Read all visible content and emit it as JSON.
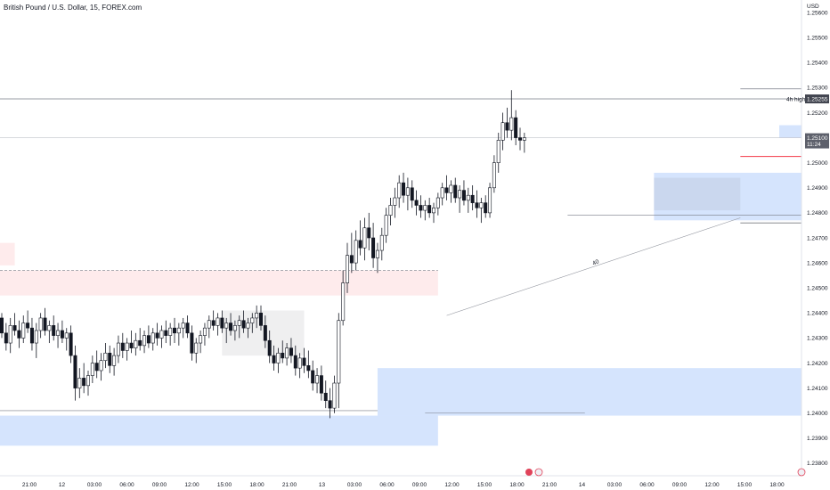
{
  "header": {
    "title": "British Pound / U.S. Dollar, 15, FOREX.com",
    "currency": "USD"
  },
  "price_axis": {
    "ticks": [
      "1.25600",
      "1.25500",
      "1.25400",
      "1.25300",
      "1.25200",
      "1.25000",
      "1.24900",
      "1.24800",
      "1.24700",
      "1.24600",
      "1.24500",
      "1.24400",
      "1.24300",
      "1.24200",
      "1.24100",
      "1.24000",
      "1.23900",
      "1.23800"
    ],
    "last_price_label": "1.25100",
    "countdown_label": "11:24",
    "high_label": "4h high",
    "high_value": "1.25255"
  },
  "time_axis": {
    "labels": [
      "21:00",
      "12",
      "03:00",
      "06:00",
      "09:00",
      "12:00",
      "15:00",
      "18:00",
      "21:00",
      "13",
      "03:00",
      "06:00",
      "09:00",
      "12:00",
      "15:00",
      "18:00",
      "21:00",
      "14",
      "03:00",
      "06:00",
      "09:00",
      "12:00",
      "15:00",
      "18:00"
    ]
  },
  "annotation_text": "40",
  "colors": {
    "up": "#ffffff",
    "down": "#131722",
    "wick": "#131722",
    "demand_zone": "rgba(66,133,244,0.22)",
    "supply_zone": "rgba(242,54,69,0.10)",
    "range_box": "rgba(120,123,134,0.12)",
    "red_line": "#f23645"
  },
  "chart_data": {
    "type": "candlestick",
    "symbol": "British Pound / U.S. Dollar",
    "interval": "15",
    "source": "FOREX.com",
    "ylim": [
      1.2375,
      1.2565
    ],
    "y_ticks": [
      1.256,
      1.255,
      1.254,
      1.253,
      1.252,
      1.25,
      1.249,
      1.248,
      1.247,
      1.246,
      1.245,
      1.244,
      1.243,
      1.242,
      1.241,
      1.24,
      1.239,
      1.238
    ],
    "x_ticks": [
      "21:00",
      "12",
      "03:00",
      "06:00",
      "09:00",
      "12:00",
      "15:00",
      "18:00",
      "21:00",
      "13",
      "03:00",
      "06:00",
      "09:00",
      "12:00",
      "15:00",
      "18:00",
      "21:00",
      "14",
      "03:00",
      "06:00",
      "09:00",
      "12:00",
      "15:00",
      "18:00"
    ],
    "horizontal_levels": [
      {
        "label": "4h high",
        "value": 1.25255
      },
      {
        "label": "last",
        "value": 1.251
      }
    ],
    "zones": [
      {
        "kind": "supply",
        "x_from": -5,
        "x_to": 101,
        "y_low": 1.2447,
        "y_high": 1.2457
      },
      {
        "kind": "supply",
        "x_from": -5,
        "x_to": 3,
        "y_low": 1.2459,
        "y_high": 1.2468
      },
      {
        "kind": "demand",
        "x_from": -5,
        "x_to": 101,
        "y_low": 1.2387,
        "y_high": 1.2399
      },
      {
        "kind": "demand",
        "x_from": 87,
        "x_to": 280,
        "y_low": 1.2399,
        "y_high": 1.2418
      },
      {
        "kind": "demand",
        "x_from": 151,
        "x_to": 241,
        "y_low": 1.2477,
        "y_high": 1.2496
      },
      {
        "kind": "demand",
        "x_from": 180,
        "x_to": 192,
        "y_low": 1.251,
        "y_high": 1.2515
      },
      {
        "kind": "supply",
        "x_from": 188,
        "x_to": 199,
        "y_low": 1.2515,
        "y_high": 1.2522
      },
      {
        "kind": "range",
        "x_from": 51,
        "x_to": 70,
        "y_low": 1.2423,
        "y_high": 1.2441
      },
      {
        "kind": "range",
        "x_from": 151,
        "x_to": 171,
        "y_low": 1.2481,
        "y_high": 1.2494
      }
    ],
    "candles": [
      [
        1.2438,
        1.244,
        1.243,
        1.2432
      ],
      [
        1.2432,
        1.2436,
        1.2425,
        1.2428
      ],
      [
        1.2428,
        1.2438,
        1.2424,
        1.2435
      ],
      [
        1.2435,
        1.244,
        1.2431,
        1.2433
      ],
      [
        1.2433,
        1.2437,
        1.2426,
        1.243
      ],
      [
        1.243,
        1.2439,
        1.2428,
        1.2436
      ],
      [
        1.2436,
        1.2441,
        1.2432,
        1.2434
      ],
      [
        1.2434,
        1.2438,
        1.2425,
        1.2428
      ],
      [
        1.2428,
        1.2436,
        1.2422,
        1.2433
      ],
      [
        1.2433,
        1.244,
        1.243,
        1.2438
      ],
      [
        1.2438,
        1.2442,
        1.2431,
        1.2433
      ],
      [
        1.2433,
        1.2437,
        1.2428,
        1.2435
      ],
      [
        1.2435,
        1.2439,
        1.2429,
        1.2431
      ],
      [
        1.2431,
        1.2436,
        1.2426,
        1.2433
      ],
      [
        1.2433,
        1.2437,
        1.2428,
        1.243
      ],
      [
        1.243,
        1.2434,
        1.2425,
        1.2432
      ],
      [
        1.2432,
        1.2435,
        1.242,
        1.2423
      ],
      [
        1.2423,
        1.2427,
        1.2405,
        1.241
      ],
      [
        1.241,
        1.2418,
        1.2406,
        1.2414
      ],
      [
        1.2414,
        1.242,
        1.2408,
        1.2411
      ],
      [
        1.2411,
        1.2417,
        1.2407,
        1.2415
      ],
      [
        1.2415,
        1.2423,
        1.2412,
        1.242
      ],
      [
        1.242,
        1.2425,
        1.2414,
        1.2417
      ],
      [
        1.2417,
        1.2424,
        1.2413,
        1.2421
      ],
      [
        1.2421,
        1.2428,
        1.2418,
        1.2424
      ],
      [
        1.2424,
        1.2427,
        1.2416,
        1.2419
      ],
      [
        1.2419,
        1.2426,
        1.2415,
        1.2423
      ],
      [
        1.2423,
        1.2431,
        1.242,
        1.2428
      ],
      [
        1.2428,
        1.2432,
        1.2422,
        1.2425
      ],
      [
        1.2425,
        1.243,
        1.2421,
        1.2428
      ],
      [
        1.2428,
        1.2433,
        1.2424,
        1.2426
      ],
      [
        1.2426,
        1.2432,
        1.2423,
        1.2429
      ],
      [
        1.2429,
        1.2434,
        1.2425,
        1.2427
      ],
      [
        1.2427,
        1.2433,
        1.2424,
        1.2431
      ],
      [
        1.2431,
        1.2435,
        1.2426,
        1.2428
      ],
      [
        1.2428,
        1.2434,
        1.2425,
        1.2432
      ],
      [
        1.2432,
        1.2436,
        1.2427,
        1.243
      ],
      [
        1.243,
        1.2435,
        1.2426,
        1.2433
      ],
      [
        1.2433,
        1.2437,
        1.2428,
        1.2431
      ],
      [
        1.2431,
        1.2436,
        1.2427,
        1.2434
      ],
      [
        1.2434,
        1.2438,
        1.2428,
        1.2432
      ],
      [
        1.2432,
        1.2436,
        1.2427,
        1.2434
      ],
      [
        1.2434,
        1.2438,
        1.243,
        1.2436
      ],
      [
        1.2436,
        1.2439,
        1.243,
        1.2432
      ],
      [
        1.2432,
        1.2435,
        1.2421,
        1.2424
      ],
      [
        1.2424,
        1.243,
        1.242,
        1.2428
      ],
      [
        1.2428,
        1.2433,
        1.2424,
        1.2431
      ],
      [
        1.2431,
        1.2436,
        1.2427,
        1.2434
      ],
      [
        1.2434,
        1.2439,
        1.243,
        1.2437
      ],
      [
        1.2437,
        1.2441,
        1.2433,
        1.2435
      ],
      [
        1.2435,
        1.244,
        1.2431,
        1.2438
      ],
      [
        1.2438,
        1.2441,
        1.2432,
        1.2434
      ],
      [
        1.2434,
        1.2438,
        1.2428,
        1.2436
      ],
      [
        1.2436,
        1.244,
        1.2431,
        1.2433
      ],
      [
        1.2433,
        1.2437,
        1.2429,
        1.2435
      ],
      [
        1.2435,
        1.2439,
        1.243,
        1.2437
      ],
      [
        1.2437,
        1.2441,
        1.2432,
        1.2434
      ],
      [
        1.2434,
        1.2438,
        1.243,
        1.2436
      ],
      [
        1.2436,
        1.244,
        1.2432,
        1.2438
      ],
      [
        1.2438,
        1.2443,
        1.2434,
        1.244
      ],
      [
        1.244,
        1.2443,
        1.2433,
        1.2435
      ],
      [
        1.2435,
        1.2439,
        1.2426,
        1.2429
      ],
      [
        1.2429,
        1.2433,
        1.242,
        1.2423
      ],
      [
        1.2423,
        1.2427,
        1.2417,
        1.242
      ],
      [
        1.242,
        1.2426,
        1.2416,
        1.2424
      ],
      [
        1.2424,
        1.2429,
        1.242,
        1.2422
      ],
      [
        1.2422,
        1.2428,
        1.2419,
        1.2426
      ],
      [
        1.2426,
        1.243,
        1.242,
        1.2423
      ],
      [
        1.2423,
        1.2427,
        1.2415,
        1.2418
      ],
      [
        1.2418,
        1.2424,
        1.2414,
        1.2422
      ],
      [
        1.2422,
        1.2426,
        1.2416,
        1.2419
      ],
      [
        1.2419,
        1.2425,
        1.2414,
        1.2417
      ],
      [
        1.2417,
        1.2421,
        1.2409,
        1.2412
      ],
      [
        1.2412,
        1.2418,
        1.2408,
        1.2415
      ],
      [
        1.2415,
        1.2419,
        1.2405,
        1.2408
      ],
      [
        1.2408,
        1.2413,
        1.2402,
        1.2405
      ],
      [
        1.2405,
        1.241,
        1.2398,
        1.2402
      ],
      [
        1.2402,
        1.2415,
        1.24,
        1.2412
      ],
      [
        1.2412,
        1.244,
        1.2402,
        1.2437
      ],
      [
        1.2437,
        1.2457,
        1.2435,
        1.2452
      ],
      [
        1.2452,
        1.2468,
        1.2448,
        1.2463
      ],
      [
        1.2463,
        1.2472,
        1.2456,
        1.246
      ],
      [
        1.246,
        1.2473,
        1.2457,
        1.2469
      ],
      [
        1.2469,
        1.2477,
        1.2463,
        1.2466
      ],
      [
        1.2466,
        1.2478,
        1.2461,
        1.2474
      ],
      [
        1.2474,
        1.248,
        1.2465,
        1.247
      ],
      [
        1.247,
        1.2476,
        1.2458,
        1.2462
      ],
      [
        1.2462,
        1.2468,
        1.2456,
        1.2465
      ],
      [
        1.2465,
        1.2474,
        1.2461,
        1.2471
      ],
      [
        1.2471,
        1.2482,
        1.2468,
        1.2479
      ],
      [
        1.2479,
        1.2486,
        1.2475,
        1.2483
      ],
      [
        1.2483,
        1.249,
        1.2478,
        1.2486
      ],
      [
        1.2486,
        1.2495,
        1.2482,
        1.2492
      ],
      [
        1.2492,
        1.2496,
        1.2484,
        1.2487
      ],
      [
        1.2487,
        1.2494,
        1.2481,
        1.249
      ],
      [
        1.249,
        1.2493,
        1.2482,
        1.2485
      ],
      [
        1.2485,
        1.2489,
        1.2479,
        1.2483
      ],
      [
        1.2483,
        1.2487,
        1.2478,
        1.2481
      ],
      [
        1.2481,
        1.2485,
        1.2477,
        1.2483
      ],
      [
        1.2483,
        1.2486,
        1.2478,
        1.248
      ],
      [
        1.248,
        1.2484,
        1.2476,
        1.2482
      ],
      [
        1.2482,
        1.2488,
        1.2479,
        1.2486
      ],
      [
        1.2486,
        1.2492,
        1.2483,
        1.249
      ],
      [
        1.249,
        1.2495,
        1.2485,
        1.2488
      ],
      [
        1.2488,
        1.2493,
        1.2484,
        1.2491
      ],
      [
        1.2491,
        1.2494,
        1.2484,
        1.2486
      ],
      [
        1.2486,
        1.2491,
        1.248,
        1.2489
      ],
      [
        1.2489,
        1.2493,
        1.2483,
        1.2485
      ],
      [
        1.2485,
        1.249,
        1.248,
        1.2487
      ],
      [
        1.2487,
        1.2491,
        1.2481,
        1.2484
      ],
      [
        1.2484,
        1.2489,
        1.2478,
        1.2482
      ],
      [
        1.2482,
        1.2486,
        1.2476,
        1.2484
      ],
      [
        1.2484,
        1.2487,
        1.2478,
        1.248
      ],
      [
        1.248,
        1.2492,
        1.2478,
        1.249
      ],
      [
        1.249,
        1.2503,
        1.2488,
        1.25
      ],
      [
        1.25,
        1.2512,
        1.2496,
        1.2509
      ],
      [
        1.2509,
        1.252,
        1.2505,
        1.2516
      ],
      [
        1.2516,
        1.2522,
        1.251,
        1.2513
      ],
      [
        1.2513,
        1.2529,
        1.2509,
        1.2518
      ],
      [
        1.2518,
        1.2521,
        1.2507,
        1.251
      ],
      [
        1.251,
        1.2514,
        1.2505,
        1.2509
      ],
      [
        1.2509,
        1.2512,
        1.2504,
        1.251
      ]
    ]
  }
}
